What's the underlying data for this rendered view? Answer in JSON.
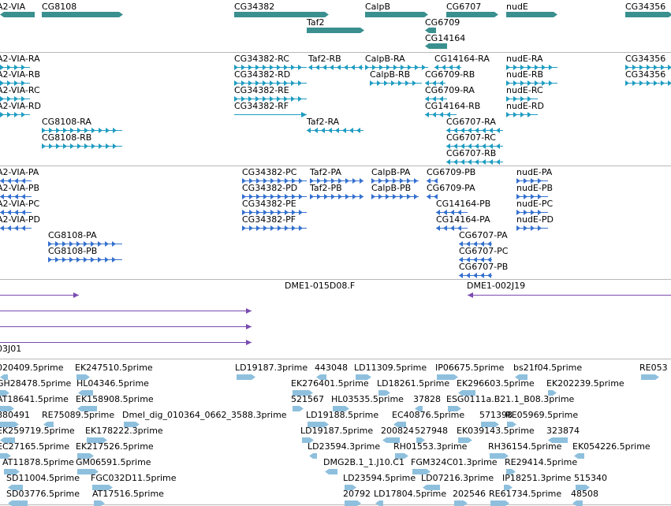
{
  "colors": {
    "gene": "#3a8f8f",
    "transcript_fly": "#1f9cc2",
    "protein": "#3570cf",
    "bac": "#7a4ab0",
    "est": "#8ec0de",
    "separator": "#b8b8b8"
  },
  "tracks": {
    "genes": [
      {
        "label": "A2-VIA",
        "dir": "left"
      },
      {
        "label": "CG8108"
      },
      {
        "label": "CG34382"
      },
      {
        "label": "CalpB"
      },
      {
        "label": "CG6707"
      },
      {
        "label": "nudE"
      },
      {
        "label": "CG34356"
      },
      {
        "label": "Taf2"
      },
      {
        "label": "CG6709"
      },
      {
        "label": "CG14164"
      }
    ],
    "transcripts": [
      {
        "label": "A2-VIA-RA"
      },
      {
        "label": "A2-VIA-RB"
      },
      {
        "label": "A2-VIA-RC"
      },
      {
        "label": "A2-VIA-RD"
      },
      {
        "label": "CG8108-RA"
      },
      {
        "label": "CG8108-RB"
      },
      {
        "label": "CG34382-RC"
      },
      {
        "label": "CG34382-RD"
      },
      {
        "label": "CG34382-RE"
      },
      {
        "label": "CG34382-RF"
      },
      {
        "label": "Taf2-RB"
      },
      {
        "label": "Taf2-RA"
      },
      {
        "label": "CalpB-RA"
      },
      {
        "label": "CalpB-RB"
      },
      {
        "label": "CG14164-RA"
      },
      {
        "label": "CG6709-RB"
      },
      {
        "label": "CG6709-RA"
      },
      {
        "label": "CG14164-RB"
      },
      {
        "label": "CG6707-RA"
      },
      {
        "label": "CG6707-RC"
      },
      {
        "label": "CG6707-RB"
      },
      {
        "label": "nudE-RA"
      },
      {
        "label": "nudE-RB"
      },
      {
        "label": "nudE-RC"
      },
      {
        "label": "nudE-RD"
      },
      {
        "label": "CG34356"
      },
      {
        "label": "CG34356"
      }
    ],
    "proteins": [
      {
        "label": "A2-VIA-PA"
      },
      {
        "label": "A2-VIA-PB"
      },
      {
        "label": "A2-VIA-PC"
      },
      {
        "label": "A2-VIA-PD"
      },
      {
        "label": "CG8108-PA"
      },
      {
        "label": "CG8108-PB"
      },
      {
        "label": "CG34382-PC"
      },
      {
        "label": "CG34382-PD"
      },
      {
        "label": "CG34382-PE"
      },
      {
        "label": "CG34382-PF"
      },
      {
        "label": "Taf2-PA"
      },
      {
        "label": "Taf2-PB"
      },
      {
        "label": "CalpB-PA"
      },
      {
        "label": "CalpB-PB"
      },
      {
        "label": "CG6709-PB"
      },
      {
        "label": "CG6709-PA"
      },
      {
        "label": "CG14164-PB"
      },
      {
        "label": "CG14164-PA"
      },
      {
        "label": "CG6707-PA"
      },
      {
        "label": "CG6707-PC"
      },
      {
        "label": "CG6707-PB"
      },
      {
        "label": "nudE-PA"
      },
      {
        "label": "nudE-PB"
      },
      {
        "label": "nudE-PC"
      },
      {
        "label": "nudE-PD"
      }
    ],
    "bacs": [
      {
        "label": "DME1-015D08.F"
      },
      {
        "label": "DME1-002J19"
      },
      {
        "label": ""
      },
      {
        "label": ""
      },
      {
        "label": ""
      },
      {
        "label": "03J01"
      }
    ],
    "ests": [
      "020409.5prime",
      "EK247510.5prime",
      "LD19187.3prime",
      "443048",
      "LD11309.5prime",
      "IP06675.5prime",
      "bs21f04.5prime",
      "RE053",
      "GH28478.5prime",
      "HL04346.5prime",
      "EK276401.5prime",
      "LD18261.5prime",
      "EK296603.5prime",
      "EK202239.5prime",
      "AT18641.5prime",
      "EK158908.5prime",
      "521567",
      "HL03535.5prime",
      "37828",
      "ESG0111a.B21.1_B08.3prime",
      "880491",
      "RE75089.5prime",
      "Dmel_dig_010364_0662_3588.3prime",
      "LD19188.5prime",
      "EC40876.5prime",
      "571398",
      "RE05969.5prime",
      "EK259719.5prime",
      "EK178222.3prime",
      "LD19187.5prime",
      "200824",
      "527948",
      "EK039143.5prime",
      "323874",
      "EC27165.5prime",
      "EK217526.5prime",
      "LD23594.3prime",
      "RH01553.3prime",
      "RH36154.5prime",
      "EK054226.5prime",
      "AT11878.5prime",
      "GM06591.5prime",
      "DMG2B.1_1.J10.C1",
      "FGM324C01.3prime",
      "RE29414.5prime",
      "SD11004.5prime",
      "FGC032D11.5prime",
      "LD23594.5prime",
      "LD07216.3prime",
      "IP18251.3prime",
      "515340",
      "SD03776.5prime",
      "AT17516.5prime",
      "20792",
      "LD17804.5prime",
      "202546",
      "RE61734.5prime",
      "48508"
    ]
  }
}
